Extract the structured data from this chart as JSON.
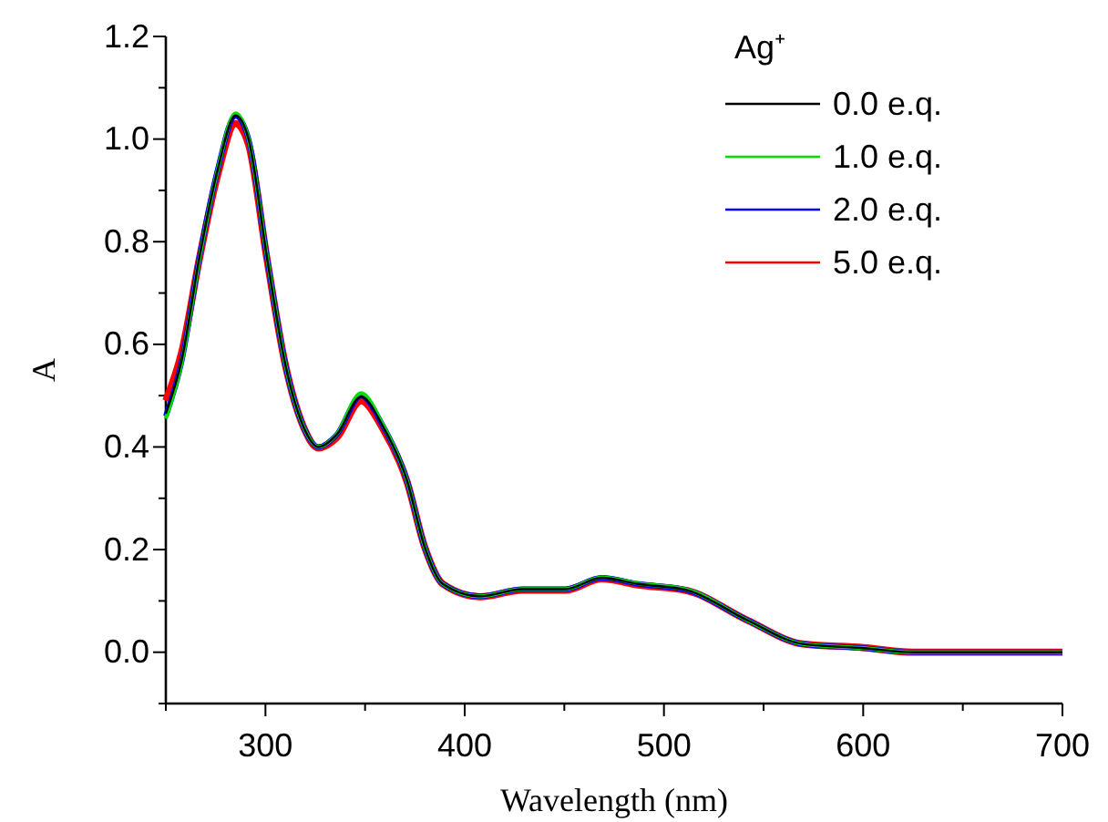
{
  "chart_data": {
    "type": "line",
    "xlabel": "Wavelength (nm)",
    "ylabel": "A",
    "legend_title": "Ag⁺",
    "legend": "top right",
    "x": [
      250,
      258,
      267,
      276,
      285,
      291.5,
      300.6,
      310,
      319,
      326.6,
      335.8,
      348,
      358.7,
      371,
      380,
      389,
      407.6,
      429,
      450.5,
      468.8,
      487,
      511.6,
      542,
      569.7,
      600,
      624.8,
      700
    ],
    "xlim": [
      250,
      700
    ],
    "ylim": [
      -0.1,
      1.2
    ],
    "xticks": [
      {
        "value": 250,
        "label": null
      },
      300,
      {
        "value": 350,
        "label": null
      },
      400,
      {
        "value": 450,
        "label": null
      },
      500,
      {
        "value": 550,
        "label": null
      },
      600,
      {
        "value": 650,
        "label": null
      },
      700
    ],
    "yticks": [
      {
        "value": -0.1,
        "label": null
      },
      {
        "value": 0,
        "label": "0.0"
      },
      {
        "value": 0.1,
        "label": null
      },
      0.2,
      {
        "value": 0.3,
        "label": null
      },
      0.4,
      {
        "value": 0.5,
        "label": null
      },
      0.6,
      {
        "value": 0.7,
        "label": null
      },
      0.8,
      {
        "value": 0.9,
        "label": null
      },
      {
        "value": 1.0,
        "label": "1.0"
      },
      {
        "value": 1.1,
        "label": null
      },
      1.2
    ],
    "series": [
      {
        "name": "0.0 e.q.",
        "color": "#000000",
        "values": [
          0.465,
          0.57,
          0.773,
          0.94,
          1.046,
          1.0,
          0.773,
          0.56,
          0.44,
          0.4,
          0.424,
          0.498,
          0.442,
          0.335,
          0.204,
          0.133,
          0.109,
          0.123,
          0.123,
          0.145,
          0.133,
          0.121,
          0.062,
          0.016,
          0.008,
          0.0,
          0.0
        ]
      },
      {
        "name": "1.0 e.q.",
        "color": "#00dd00",
        "values": [
          0.455,
          0.565,
          0.77,
          0.94,
          1.05,
          1.0,
          0.775,
          0.56,
          0.44,
          0.4,
          0.425,
          0.505,
          0.445,
          0.335,
          0.204,
          0.133,
          0.109,
          0.123,
          0.123,
          0.146,
          0.134,
          0.122,
          0.062,
          0.016,
          0.008,
          0.0,
          0.0
        ]
      },
      {
        "name": "2.0 e.q.",
        "color": "#0000ff",
        "values": [
          0.46,
          0.568,
          0.772,
          0.94,
          1.045,
          1.0,
          0.774,
          0.56,
          0.44,
          0.4,
          0.424,
          0.5,
          0.443,
          0.335,
          0.204,
          0.133,
          0.109,
          0.123,
          0.123,
          0.145,
          0.133,
          0.121,
          0.062,
          0.016,
          0.008,
          0.0,
          0.0
        ]
      },
      {
        "name": "5.0 e.q.",
        "color": "#ff0000",
        "values": [
          0.49,
          0.585,
          0.77,
          0.93,
          1.03,
          0.99,
          0.77,
          0.56,
          0.44,
          0.398,
          0.418,
          0.49,
          0.437,
          0.333,
          0.204,
          0.133,
          0.108,
          0.121,
          0.121,
          0.143,
          0.131,
          0.12,
          0.062,
          0.016,
          0.009,
          0.0,
          0.0
        ]
      }
    ]
  }
}
